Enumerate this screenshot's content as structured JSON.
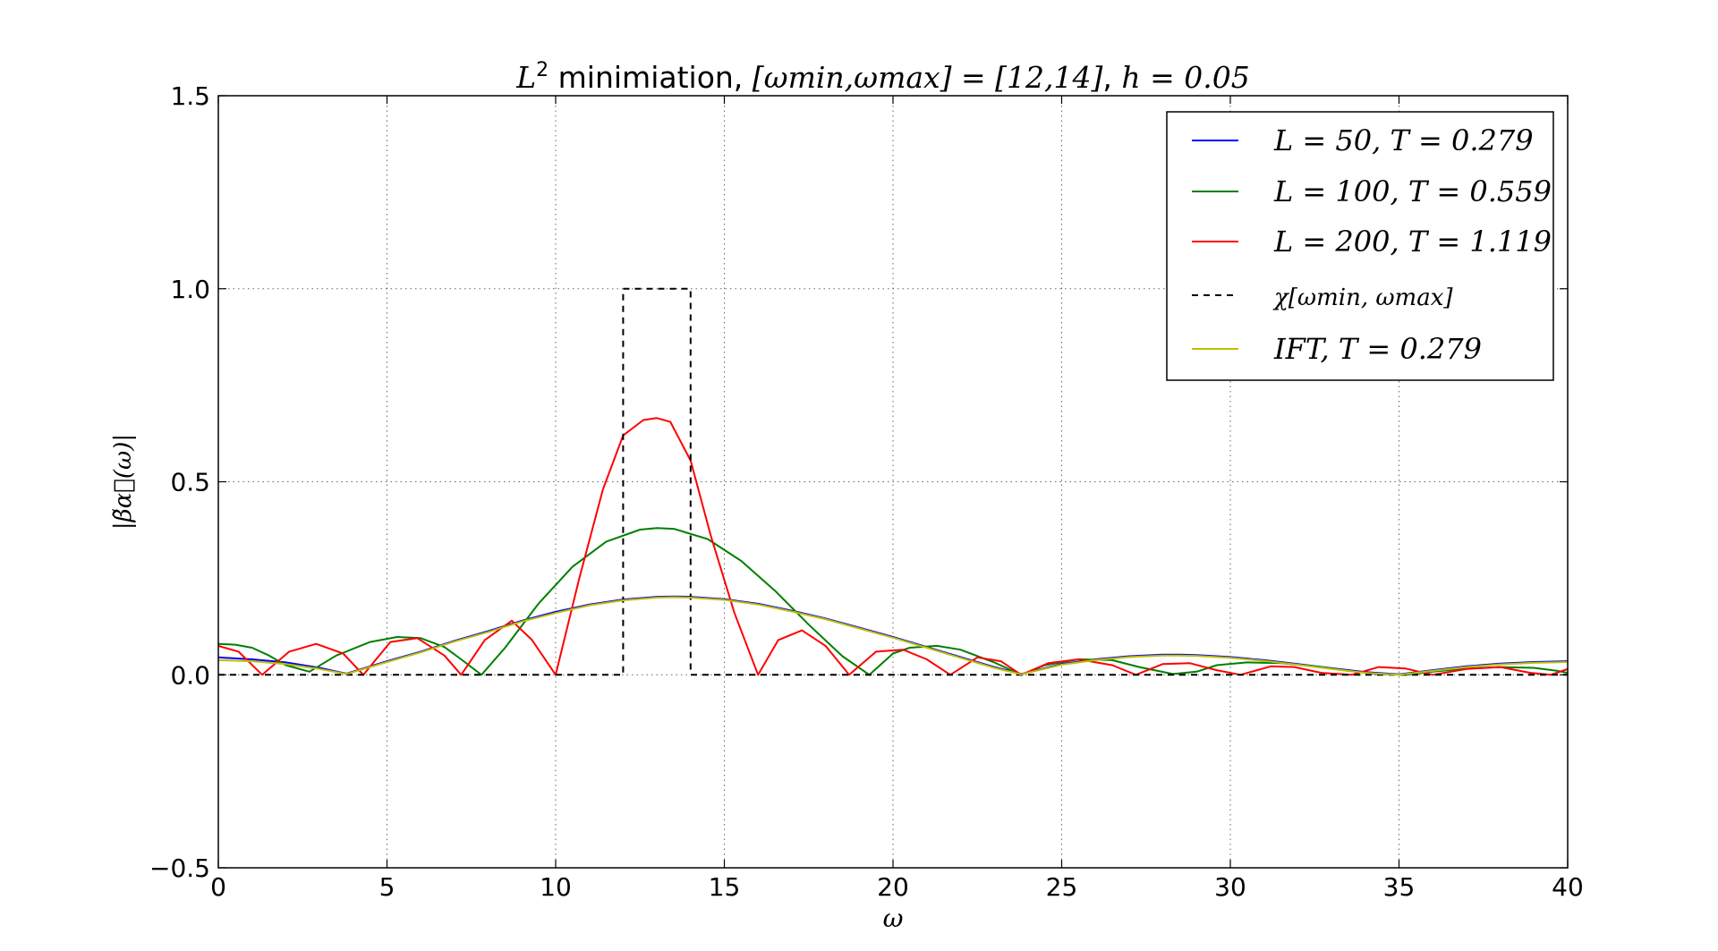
{
  "chart_data": {
    "type": "line",
    "title": "L² minimiation, [ωmin,ωmax] = [12,14], h = 0.05",
    "title_parts": {
      "sup_base": "L",
      "sup": "2",
      "text": " minimiation, ",
      "interval_lhs": "[ωmin,ωmax] = [12,14]",
      "sep": ", ",
      "h_part": "h = 0.05"
    },
    "xlabel": "ω",
    "ylabel": "|β̃α⃗(ω)|",
    "xlim": [
      0,
      40
    ],
    "ylim": [
      -0.5,
      1.5
    ],
    "xticks": [
      0,
      5,
      10,
      15,
      20,
      25,
      30,
      35,
      40
    ],
    "xtick_labels": [
      "0",
      "5",
      "10",
      "15",
      "20",
      "25",
      "30",
      "35",
      "40"
    ],
    "yticks": [
      -0.5,
      0.0,
      0.5,
      1.0,
      1.5
    ],
    "ytick_labels": [
      "−0.5",
      "0.0",
      "0.5",
      "1.0",
      "1.5"
    ],
    "grid": true,
    "legend_position": "top-right",
    "series": [
      {
        "name": "L = 50, T = 0.279",
        "legend_label": "L = 50, T = 0.279",
        "color": "#0000ff",
        "style": "solid",
        "x": [
          0,
          1,
          2,
          3,
          3.8,
          5,
          6,
          7,
          8,
          9,
          10,
          11,
          12,
          13,
          13.5,
          14,
          15,
          16,
          17,
          18,
          19,
          20,
          21,
          22,
          23,
          23.8,
          25,
          26,
          27,
          28,
          28.5,
          29,
          30,
          31,
          32,
          33,
          34,
          35,
          36,
          37,
          38,
          39,
          40
        ],
        "y": [
          0.045,
          0.04,
          0.032,
          0.018,
          0.003,
          0.035,
          0.06,
          0.088,
          0.113,
          0.14,
          0.163,
          0.182,
          0.195,
          0.202,
          0.203,
          0.202,
          0.196,
          0.184,
          0.166,
          0.146,
          0.122,
          0.098,
          0.072,
          0.046,
          0.02,
          0.002,
          0.028,
          0.04,
          0.048,
          0.052,
          0.052,
          0.051,
          0.046,
          0.038,
          0.028,
          0.017,
          0.007,
          0.001,
          0.012,
          0.022,
          0.029,
          0.033,
          0.035
        ]
      },
      {
        "name": "L = 100, T = 0.559",
        "legend_label": "L = 100, T = 0.559",
        "color": "#007f00",
        "style": "solid",
        "x": [
          0,
          0.5,
          1,
          1.5,
          2,
          2.7,
          3.5,
          4.5,
          5.3,
          6,
          6.7,
          7.2,
          7.8,
          8.5,
          9.5,
          10.5,
          11.5,
          12.5,
          13,
          13.5,
          14.5,
          15.5,
          16.5,
          17.5,
          18.5,
          19.3,
          20,
          20.5,
          21.3,
          22,
          23,
          23.8,
          24.5,
          25.5,
          26.5,
          27.3,
          28.3,
          29,
          29.6,
          30.5,
          31.5,
          32.5,
          33.5,
          34.3,
          35.2,
          36,
          37,
          38,
          39,
          39.7,
          40
        ],
        "y": [
          0.08,
          0.078,
          0.07,
          0.05,
          0.025,
          0.008,
          0.05,
          0.085,
          0.098,
          0.095,
          0.072,
          0.04,
          0.0,
          0.07,
          0.185,
          0.28,
          0.345,
          0.376,
          0.38,
          0.378,
          0.352,
          0.295,
          0.218,
          0.13,
          0.048,
          0.0,
          0.055,
          0.07,
          0.075,
          0.065,
          0.032,
          0.0,
          0.025,
          0.04,
          0.038,
          0.02,
          0.002,
          0.008,
          0.025,
          0.032,
          0.03,
          0.022,
          0.01,
          0.002,
          0.0,
          0.008,
          0.016,
          0.02,
          0.018,
          0.01,
          0.005
        ]
      },
      {
        "name": "L = 200, T = 1.119",
        "legend_label": "L = 200, T = 1.119",
        "color": "#ff0000",
        "style": "solid",
        "x": [
          0,
          0.6,
          1.3,
          2.1,
          2.9,
          3.7,
          4.3,
          5.1,
          5.9,
          6.7,
          7.2,
          7.9,
          8.7,
          9.3,
          10,
          10.7,
          11.4,
          12,
          12.6,
          13,
          13.4,
          14,
          14.6,
          15.3,
          16,
          16.6,
          17.3,
          18,
          18.7,
          19.5,
          20.3,
          21,
          21.7,
          22.5,
          23.2,
          23.8,
          24.6,
          25.5,
          26.5,
          27.2,
          28,
          28.8,
          29.6,
          30.3,
          31.2,
          31.9,
          32.7,
          33.6,
          34.4,
          35.2,
          36,
          37,
          38,
          38.9,
          39.5,
          40
        ],
        "y": [
          0.075,
          0.06,
          0.0,
          0.06,
          0.08,
          0.055,
          0.0,
          0.085,
          0.095,
          0.05,
          0.0,
          0.09,
          0.14,
          0.09,
          0.0,
          0.25,
          0.48,
          0.62,
          0.66,
          0.665,
          0.655,
          0.555,
          0.36,
          0.16,
          0.0,
          0.09,
          0.115,
          0.075,
          0.0,
          0.06,
          0.065,
          0.04,
          0.0,
          0.045,
          0.035,
          0.0,
          0.03,
          0.04,
          0.025,
          0.0,
          0.028,
          0.03,
          0.012,
          0.0,
          0.022,
          0.02,
          0.005,
          0.0,
          0.02,
          0.016,
          0.0,
          0.015,
          0.02,
          0.005,
          0.0,
          0.015
        ]
      },
      {
        "name": "χ[ωmin,ωmax]",
        "legend_label": "χ[ωmin, ωmax]",
        "color": "#000000",
        "style": "dashed",
        "x": [
          0,
          12,
          12,
          14,
          14,
          40
        ],
        "y": [
          0,
          0,
          1,
          1,
          0,
          0
        ]
      },
      {
        "name": "IFT, T = 0.279",
        "legend_label": "IFT, T = 0.279",
        "color": "#bfbf00",
        "style": "solid",
        "x": [
          0,
          1,
          2,
          3,
          3.8,
          5,
          6,
          7,
          8,
          9,
          10,
          11,
          12,
          13,
          13.5,
          14,
          15,
          16,
          17,
          18,
          19,
          20,
          21,
          22,
          23,
          23.8,
          25,
          26,
          27,
          28,
          28.5,
          29,
          30,
          31,
          32,
          33,
          34,
          35,
          36,
          37,
          38,
          39,
          40
        ],
        "y": [
          0.038,
          0.035,
          0.028,
          0.015,
          0.002,
          0.033,
          0.058,
          0.086,
          0.111,
          0.138,
          0.16,
          0.18,
          0.193,
          0.2,
          0.201,
          0.2,
          0.194,
          0.182,
          0.164,
          0.144,
          0.12,
          0.096,
          0.07,
          0.044,
          0.018,
          0.001,
          0.026,
          0.038,
          0.046,
          0.05,
          0.05,
          0.049,
          0.044,
          0.036,
          0.026,
          0.015,
          0.005,
          0.0,
          0.01,
          0.02,
          0.027,
          0.031,
          0.033
        ]
      }
    ]
  }
}
